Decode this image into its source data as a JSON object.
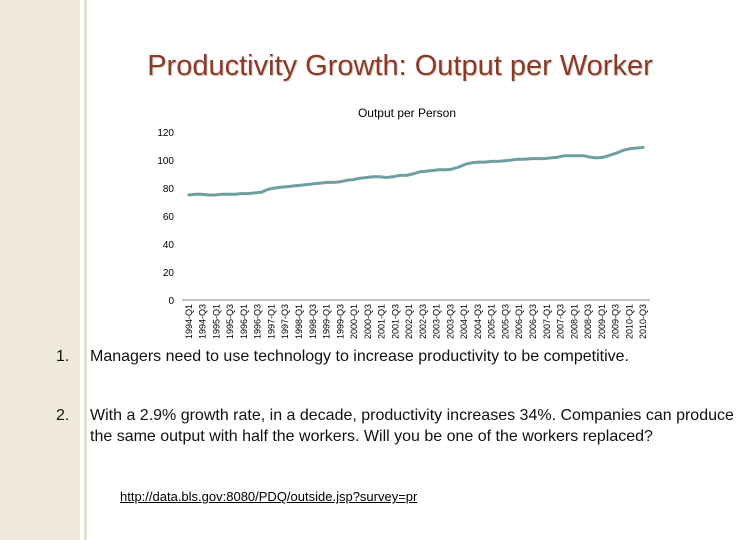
{
  "slide": {
    "title": "Productivity Growth: Output per Worker",
    "bullets": [
      {
        "number": "1.",
        "text": "Managers need to use technology to increase productivity to be competitive."
      },
      {
        "number": "2.",
        "text": "With a 2.9% growth rate, in a decade, productivity increases 34%. Companies can produce the same output with half the workers. Will you be one of the workers replaced?"
      }
    ],
    "link": "http://data.bls.gov:8080/PDQ/outside.jsp?survey=pr"
  },
  "colors": {
    "title": "#8b3a28",
    "line": "#6f9fa3",
    "sidebar": "#efeadb"
  },
  "chart_data": {
    "type": "line",
    "title": "Output per Person",
    "xlabel": "",
    "ylabel": "",
    "ylim": [
      0,
      120
    ],
    "yticks": [
      0,
      20,
      40,
      60,
      80,
      100,
      120
    ],
    "grid": false,
    "x_tick_labels": [
      "1994-Q1",
      "1994-Q3",
      "1995-Q1",
      "1995-Q3",
      "1996-Q1",
      "1996-Q3",
      "1997-Q1",
      "1997-Q3",
      "1998-Q1",
      "1998-Q3",
      "1999-Q1",
      "1999-Q3",
      "2000-Q1",
      "2000-Q3",
      "2001-Q1",
      "2001-Q3",
      "2002-Q1",
      "2002-Q3",
      "2003-Q1",
      "2003-Q3",
      "2004-Q1",
      "2004-Q3",
      "2005-Q1",
      "2005-Q3",
      "2006-Q1",
      "2006-Q3",
      "2007-Q1",
      "2007-Q3",
      "2008-Q1",
      "2008-Q3",
      "2009-Q1",
      "2009-Q3",
      "2010-Q1",
      "2010-Q3"
    ],
    "series": [
      {
        "name": "Output per Person",
        "values": [
          75,
          75.5,
          75.5,
          75,
          75,
          75.5,
          75.5,
          75.5,
          76,
          76,
          76.5,
          77,
          79,
          80,
          80.5,
          81,
          81.5,
          82,
          82.5,
          83,
          83.5,
          84,
          84,
          84.5,
          85.5,
          86,
          87,
          87.5,
          88,
          88,
          87.5,
          88,
          89,
          89,
          90,
          91.5,
          92,
          92.5,
          93,
          93,
          93.5,
          95,
          97,
          98,
          98.5,
          98.5,
          99,
          99,
          99.5,
          100,
          100.5,
          100.5,
          101,
          101,
          101,
          101.5,
          102,
          103,
          103,
          103,
          103,
          102,
          101.5,
          102,
          103.5,
          105,
          107,
          108,
          108.5,
          109
        ]
      }
    ]
  }
}
